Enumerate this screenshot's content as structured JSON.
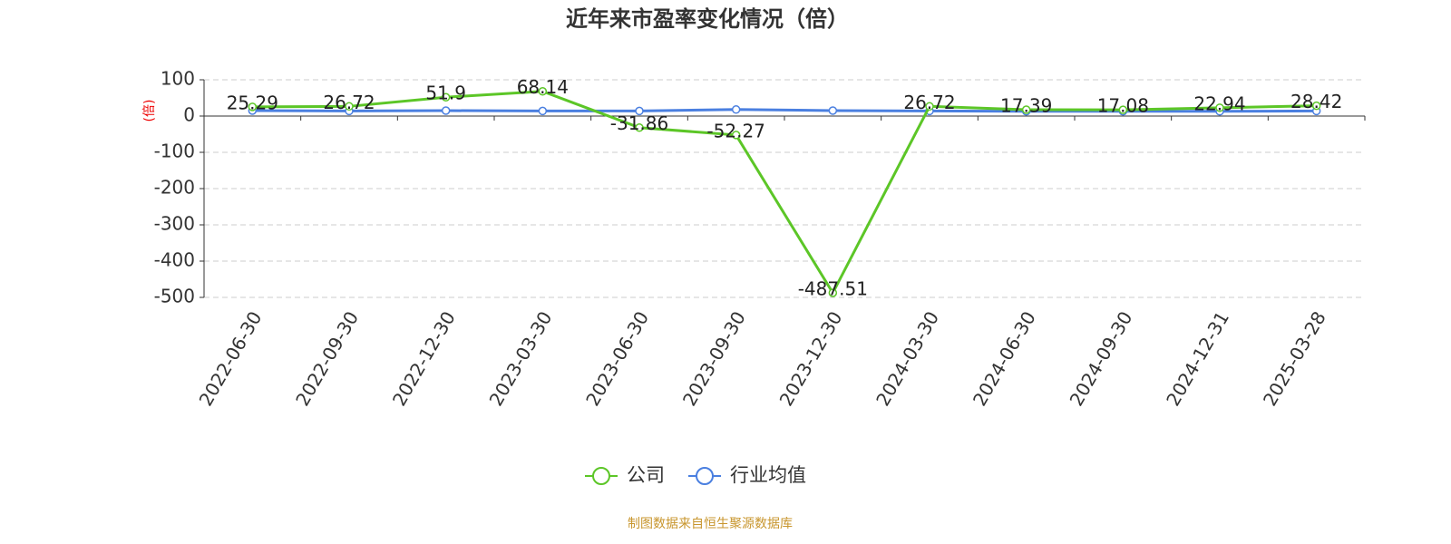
{
  "chart_data": {
    "type": "line",
    "title": "近年来市盈率变化情况（倍）",
    "y_label": "(倍)",
    "source": "制图数据来自恒生聚源数据库",
    "categories": [
      "2022-06-30",
      "2022-09-30",
      "2022-12-30",
      "2023-03-30",
      "2023-06-30",
      "2023-09-30",
      "2023-12-30",
      "2024-03-30",
      "2024-06-30",
      "2024-09-30",
      "2024-12-31",
      "2025-03-28"
    ],
    "series": [
      {
        "name": "公司",
        "color": "#5cc627",
        "show_labels": true,
        "values": [
          25.29,
          26.72,
          51.9,
          68.14,
          -31.86,
          -52.27,
          -487.51,
          26.72,
          17.39,
          17.08,
          22.94,
          28.42
        ]
      },
      {
        "name": "行业均值",
        "color": "#4a7fe0",
        "show_labels": false,
        "values": [
          15,
          14,
          15,
          14,
          14,
          18,
          15,
          14,
          13,
          13,
          13,
          14
        ]
      }
    ],
    "ylim": [
      -500,
      100
    ],
    "yticks": [
      -500,
      -400,
      -300,
      -200,
      -100,
      0,
      100
    ],
    "grid": true
  }
}
